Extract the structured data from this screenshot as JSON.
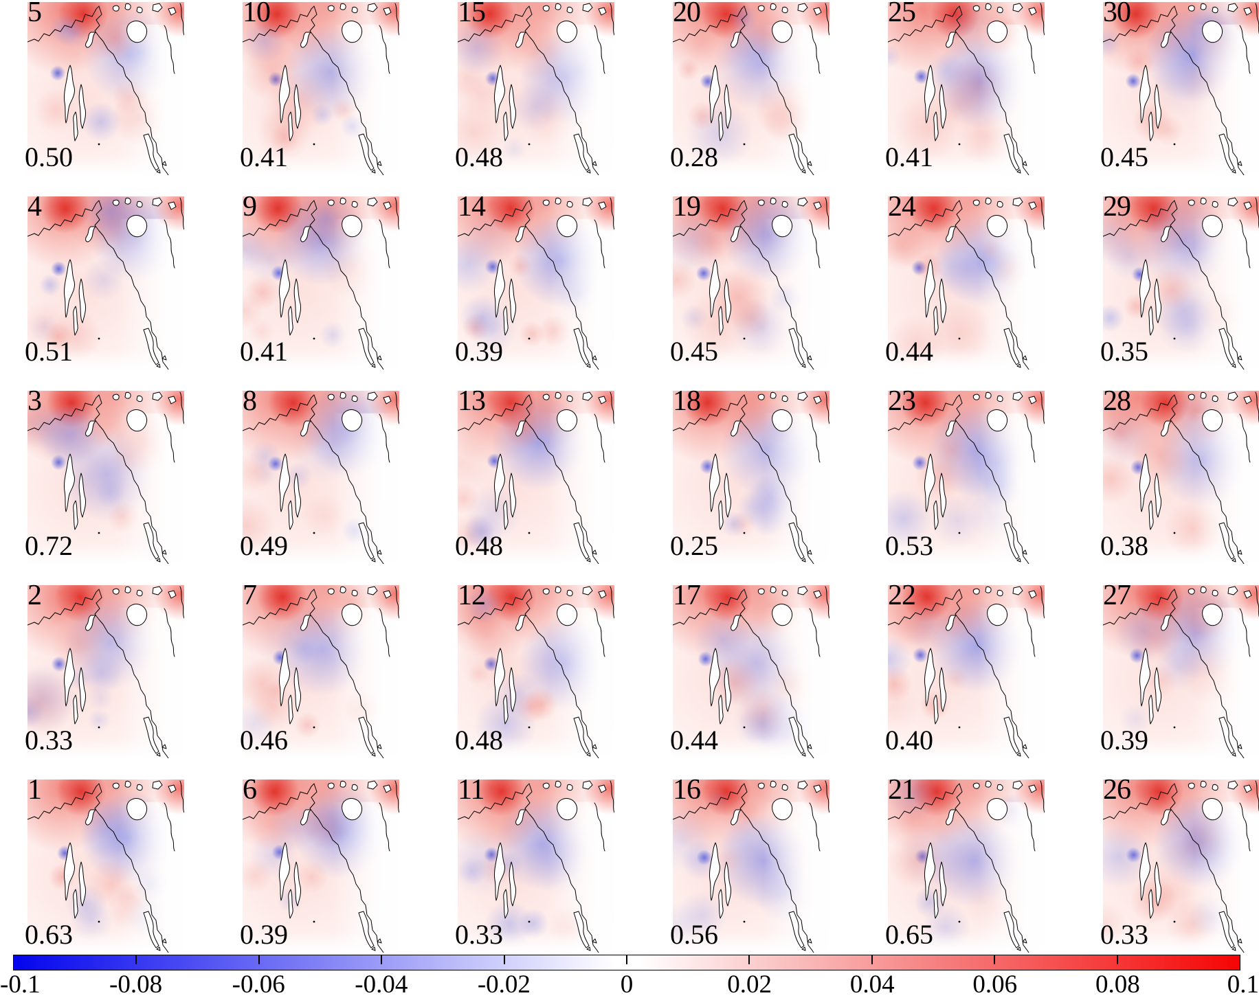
{
  "figure": {
    "kind": "multi-panel anomaly map figure",
    "region_hint": "North Pacific and North America"
  },
  "panels": [
    {
      "number": "5",
      "value": "0.50"
    },
    {
      "number": "10",
      "value": "0.41"
    },
    {
      "number": "15",
      "value": "0.48"
    },
    {
      "number": "20",
      "value": "0.28"
    },
    {
      "number": "25",
      "value": "0.41"
    },
    {
      "number": "30",
      "value": "0.45"
    },
    {
      "number": "4",
      "value": "0.51"
    },
    {
      "number": "9",
      "value": "0.41"
    },
    {
      "number": "14",
      "value": "0.39"
    },
    {
      "number": "19",
      "value": "0.45"
    },
    {
      "number": "24",
      "value": "0.44"
    },
    {
      "number": "29",
      "value": "0.35"
    },
    {
      "number": "3",
      "value": "0.72"
    },
    {
      "number": "8",
      "value": "0.49"
    },
    {
      "number": "13",
      "value": "0.48"
    },
    {
      "number": "18",
      "value": "0.25"
    },
    {
      "number": "23",
      "value": "0.53"
    },
    {
      "number": "28",
      "value": "0.38"
    },
    {
      "number": "2",
      "value": "0.33"
    },
    {
      "number": "7",
      "value": "0.46"
    },
    {
      "number": "12",
      "value": "0.48"
    },
    {
      "number": "17",
      "value": "0.44"
    },
    {
      "number": "22",
      "value": "0.40"
    },
    {
      "number": "27",
      "value": "0.39"
    },
    {
      "number": "1",
      "value": "0.63"
    },
    {
      "number": "6",
      "value": "0.39"
    },
    {
      "number": "11",
      "value": "0.33"
    },
    {
      "number": "16",
      "value": "0.56"
    },
    {
      "number": "21",
      "value": "0.65"
    },
    {
      "number": "26",
      "value": "0.33"
    }
  ],
  "colorbar": {
    "ticks": [
      "-0.1",
      "-0.08",
      "-0.06",
      "-0.04",
      "-0.02",
      "0",
      "0.02",
      "0.04",
      "0.06",
      "0.08",
      "0.1"
    ],
    "min_color": "#0404ee",
    "mid_color": "#ffffff",
    "max_color": "#f60404"
  },
  "chart_data": {
    "type": "heatmap",
    "description": "5x6 grid of spatial anomaly/correlation map panels over the North Pacific and North America. Each panel shows a red-blue anomaly field with coastlines; the integer at top-left is the panel index, the decimal at bottom-left is its score. Panel numbers increase bottom-to-top within each column (bottom row: 1,6,11,16,21,26; top row: 5,10,15,20,25,30).",
    "grid": {
      "rows": 5,
      "cols": 6
    },
    "panels": [
      {
        "number": 5,
        "value": 0.5
      },
      {
        "number": 10,
        "value": 0.41
      },
      {
        "number": 15,
        "value": 0.48
      },
      {
        "number": 20,
        "value": 0.28
      },
      {
        "number": 25,
        "value": 0.41
      },
      {
        "number": 30,
        "value": 0.45
      },
      {
        "number": 4,
        "value": 0.51
      },
      {
        "number": 9,
        "value": 0.41
      },
      {
        "number": 14,
        "value": 0.39
      },
      {
        "number": 19,
        "value": 0.45
      },
      {
        "number": 24,
        "value": 0.44
      },
      {
        "number": 29,
        "value": 0.35
      },
      {
        "number": 3,
        "value": 0.72
      },
      {
        "number": 8,
        "value": 0.49
      },
      {
        "number": 13,
        "value": 0.48
      },
      {
        "number": 18,
        "value": 0.25
      },
      {
        "number": 23,
        "value": 0.53
      },
      {
        "number": 28,
        "value": 0.38
      },
      {
        "number": 2,
        "value": 0.33
      },
      {
        "number": 7,
        "value": 0.46
      },
      {
        "number": 12,
        "value": 0.48
      },
      {
        "number": 17,
        "value": 0.44
      },
      {
        "number": 22,
        "value": 0.4
      },
      {
        "number": 27,
        "value": 0.39
      },
      {
        "number": 1,
        "value": 0.63
      },
      {
        "number": 6,
        "value": 0.39
      },
      {
        "number": 11,
        "value": 0.33
      },
      {
        "number": 16,
        "value": 0.56
      },
      {
        "number": 21,
        "value": 0.65
      },
      {
        "number": 26,
        "value": 0.33
      }
    ],
    "colorbar": {
      "min": -0.1,
      "max": 0.1,
      "ticks": [
        -0.1,
        -0.08,
        -0.06,
        -0.04,
        -0.02,
        0,
        0.02,
        0.04,
        0.06,
        0.08,
        0.1
      ],
      "colormap": "blue-white-red",
      "orientation": "horizontal",
      "position": "bottom"
    },
    "legend_position": "none",
    "grid_lines": false
  }
}
